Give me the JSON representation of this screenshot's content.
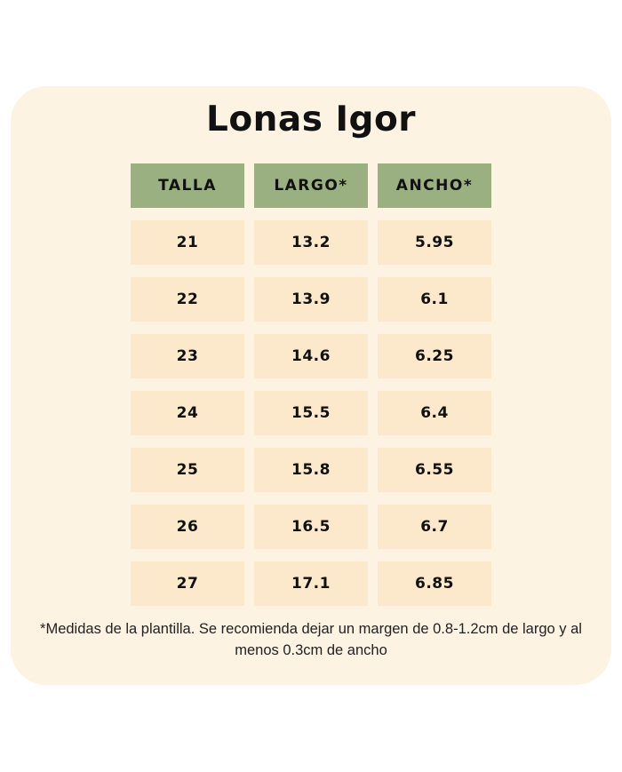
{
  "title": "Lonas Igor",
  "table": {
    "headers": [
      "TALLA",
      "LARGO*",
      "ANCHO*"
    ],
    "rows": [
      [
        "21",
        "13.2",
        "5.95"
      ],
      [
        "22",
        "13.9",
        "6.1"
      ],
      [
        "23",
        "14.6",
        "6.25"
      ],
      [
        "24",
        "15.5",
        "6.4"
      ],
      [
        "25",
        "15.8",
        "6.55"
      ],
      [
        "26",
        "16.5",
        "6.7"
      ],
      [
        "27",
        "17.1",
        "6.85"
      ]
    ]
  },
  "footnote": "*Medidas de la plantilla. Se recomienda dejar un margen de 0.8-1.2cm de largo y al menos 0.3cm de ancho",
  "colors": {
    "page_background": "#FFFFFF",
    "card_background": "#FDF3E3",
    "header_cell": "#9BB080",
    "data_cell": "#FCE8CB",
    "text": "#111111"
  },
  "chart_data": {
    "type": "table",
    "title": "Lonas Igor",
    "columns": [
      "TALLA",
      "LARGO*",
      "ANCHO*"
    ],
    "rows": [
      [
        21,
        13.2,
        5.95
      ],
      [
        22,
        13.9,
        6.1
      ],
      [
        23,
        14.6,
        6.25
      ],
      [
        24,
        15.5,
        6.4
      ],
      [
        25,
        15.8,
        6.55
      ],
      [
        26,
        16.5,
        6.7
      ],
      [
        27,
        17.1,
        6.85
      ]
    ],
    "footnote": "*Medidas de la plantilla. Se recomienda dejar un margen de 0.8-1.2cm de largo y al menos 0.3cm de ancho"
  }
}
